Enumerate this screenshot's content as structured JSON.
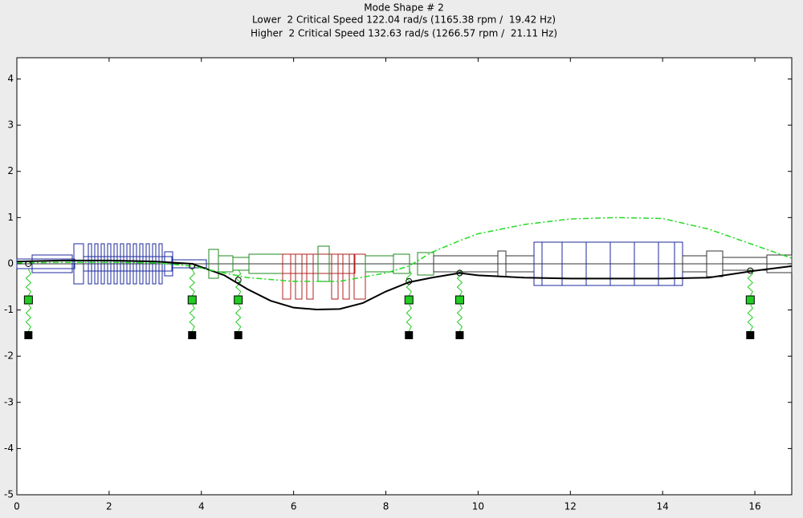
{
  "chart_data": {
    "type": "line",
    "title": "Mode Shape # 2",
    "subtitle": [
      "Lower  2 Critical Speed 122.04 rad/s (1165.38 rpm /  19.42 Hz)",
      "Higher  2 Critical Speed 132.63 rad/s (1266.57 rpm /  21.11 Hz)"
    ],
    "xlim": [
      0,
      16.8
    ],
    "ylim": [
      -5,
      4.46
    ],
    "xticks": [
      0,
      2,
      4,
      6,
      8,
      10,
      12,
      14,
      16
    ],
    "yticks": [
      -5,
      -4,
      -3,
      -2,
      -1,
      0,
      1,
      2,
      3,
      4
    ],
    "bearings": [
      0.25,
      3.8,
      4.8,
      8.5,
      9.6,
      15.9
    ],
    "series": [
      {
        "color": "#000000",
        "style": "solid",
        "marker": "none",
        "x": [
          0,
          1,
          2,
          3,
          3.8,
          4.5,
          5,
          5.5,
          6,
          6.5,
          7,
          7.5,
          8,
          8.5,
          9,
          9.6,
          10,
          11,
          12,
          13,
          14,
          15,
          16,
          16.8
        ],
        "values": [
          0.05,
          0.07,
          0.07,
          0.05,
          0,
          -0.25,
          -0.55,
          -0.8,
          -0.95,
          -0.99,
          -0.98,
          -0.85,
          -0.6,
          -0.4,
          -0.3,
          -0.2,
          -0.25,
          -0.3,
          -0.32,
          -0.32,
          -0.32,
          -0.3,
          -0.15,
          -0.05
        ]
      },
      {
        "color": "#22dd22",
        "style": "dashdot",
        "marker": "none",
        "x": [
          0,
          1,
          2,
          3,
          3.8,
          4.5,
          5,
          6,
          7,
          8,
          8.5,
          9,
          9.6,
          10,
          11,
          12,
          13,
          14,
          15,
          16,
          16.8
        ],
        "values": [
          0.02,
          0.03,
          0.03,
          0.02,
          -0.05,
          -0.2,
          -0.3,
          -0.38,
          -0.38,
          -0.2,
          -0.05,
          0.25,
          0.5,
          0.65,
          0.85,
          0.97,
          1.0,
          0.98,
          0.75,
          0.4,
          0.12
        ]
      },
      {
        "color": "#000000",
        "style": "none",
        "marker": "circle",
        "x": [
          0.25,
          3.8,
          4.8,
          8.5,
          9.6,
          15.9
        ],
        "values": [
          0,
          -0.05,
          -0.35,
          -0.38,
          -0.2,
          -0.15
        ]
      }
    ]
  }
}
